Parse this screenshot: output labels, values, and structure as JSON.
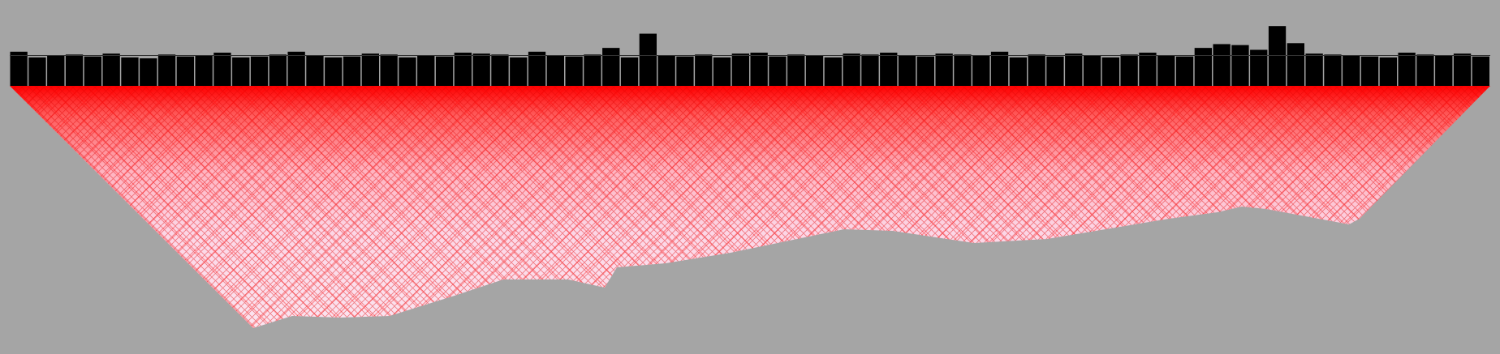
{
  "chart_data": {
    "type": "bar",
    "values": [
      36,
      30,
      32,
      33,
      31,
      34,
      30,
      29,
      33,
      31,
      32,
      35,
      30,
      31,
      33,
      36,
      32,
      30,
      31,
      34,
      33,
      30,
      32,
      31,
      35,
      34,
      33,
      30,
      36,
      32,
      31,
      33,
      40,
      30,
      55,
      32,
      31,
      33,
      30,
      34,
      35,
      31,
      33,
      32,
      30,
      34,
      33,
      35,
      32,
      31,
      34,
      33,
      32,
      36,
      30,
      33,
      31,
      34,
      32,
      30,
      33,
      35,
      32,
      31,
      40,
      44,
      43,
      38,
      63,
      45,
      34,
      33,
      32,
      31,
      30,
      35,
      33,
      32,
      34,
      31
    ],
    "color": "#000000",
    "ylim": [
      0,
      70
    ],
    "reference_line": 32
  }
}
